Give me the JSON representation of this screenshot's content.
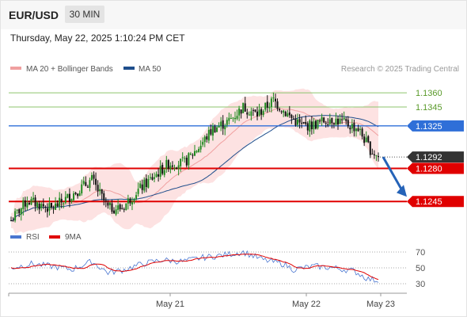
{
  "header": {
    "symbol": "EUR/USD",
    "timeframe": "30 MIN",
    "datetime": "Thursday, May 22, 2025 1:10:24 PM CET"
  },
  "legend": {
    "ma20_label": "MA 20 + Bollinger Bands",
    "ma50_label": "MA 50",
    "credit": "Research © 2025 Trading Central",
    "colors": {
      "ma20": "#f0a0a0",
      "ma50": "#1f4e8c",
      "bands_fill": "#fde2e2"
    }
  },
  "chart_data": [
    {
      "type": "candlestick",
      "ylim": [
        1.1215,
        1.1376
      ],
      "grid": true,
      "levels": [
        {
          "value": 1.136,
          "label": "1.1360",
          "kind": "resistance-light",
          "color": "#8dc56e"
        },
        {
          "value": 1.1345,
          "label": "1.1345",
          "kind": "resistance-light",
          "color": "#8dc56e"
        },
        {
          "value": 1.1325,
          "label": "1.1325",
          "kind": "pivot",
          "color": "#2f6fd8"
        },
        {
          "value": 1.1292,
          "label": "1.1292",
          "kind": "last-price",
          "color": "#333333"
        },
        {
          "value": 1.128,
          "label": "1.1280",
          "kind": "support",
          "color": "#e00000"
        },
        {
          "value": 1.1245,
          "label": "1.1245",
          "kind": "support",
          "color": "#e00000"
        }
      ],
      "colors": {
        "up": "#1f8a1f",
        "down": "#111111",
        "arrow": "#2563b8"
      },
      "price_anchors": [
        [
          0,
          1.1225
        ],
        [
          8,
          1.1246
        ],
        [
          20,
          1.1237
        ],
        [
          30,
          1.1252
        ],
        [
          40,
          1.1268
        ],
        [
          48,
          1.1238
        ],
        [
          55,
          1.1238
        ],
        [
          62,
          1.1255
        ],
        [
          70,
          1.127
        ],
        [
          78,
          1.1285
        ],
        [
          86,
          1.1286
        ],
        [
          94,
          1.1305
        ],
        [
          100,
          1.1322
        ],
        [
          108,
          1.133
        ],
        [
          115,
          1.1345
        ],
        [
          122,
          1.1337
        ],
        [
          130,
          1.1352
        ],
        [
          138,
          1.1335
        ],
        [
          144,
          1.1325
        ],
        [
          150,
          1.1326
        ],
        [
          158,
          1.1333
        ],
        [
          165,
          1.1328
        ],
        [
          172,
          1.1322
        ],
        [
          178,
          1.13
        ],
        [
          182,
          1.1292
        ]
      ],
      "forecast": {
        "from": 1.1292,
        "to": 1.125
      }
    },
    {
      "type": "line",
      "title": "RSI",
      "series": [
        {
          "name": "RSI",
          "color": "#4a76d0"
        },
        {
          "name": "9MA",
          "color": "#e00000"
        }
      ],
      "ylim": [
        22,
        78
      ],
      "ticks": [
        70,
        50,
        30
      ],
      "anchors": [
        [
          0,
          50
        ],
        [
          10,
          55
        ],
        [
          20,
          52
        ],
        [
          30,
          48
        ],
        [
          40,
          58
        ],
        [
          48,
          44
        ],
        [
          55,
          47
        ],
        [
          65,
          55
        ],
        [
          75,
          60
        ],
        [
          85,
          58
        ],
        [
          95,
          63
        ],
        [
          105,
          66
        ],
        [
          115,
          70
        ],
        [
          125,
          60
        ],
        [
          135,
          55
        ],
        [
          140,
          48
        ],
        [
          150,
          52
        ],
        [
          160,
          50
        ],
        [
          170,
          46
        ],
        [
          177,
          36
        ],
        [
          182,
          34
        ]
      ]
    }
  ],
  "xaxis": {
    "ticks": [
      "May 21",
      "May 22",
      "May 23"
    ]
  }
}
